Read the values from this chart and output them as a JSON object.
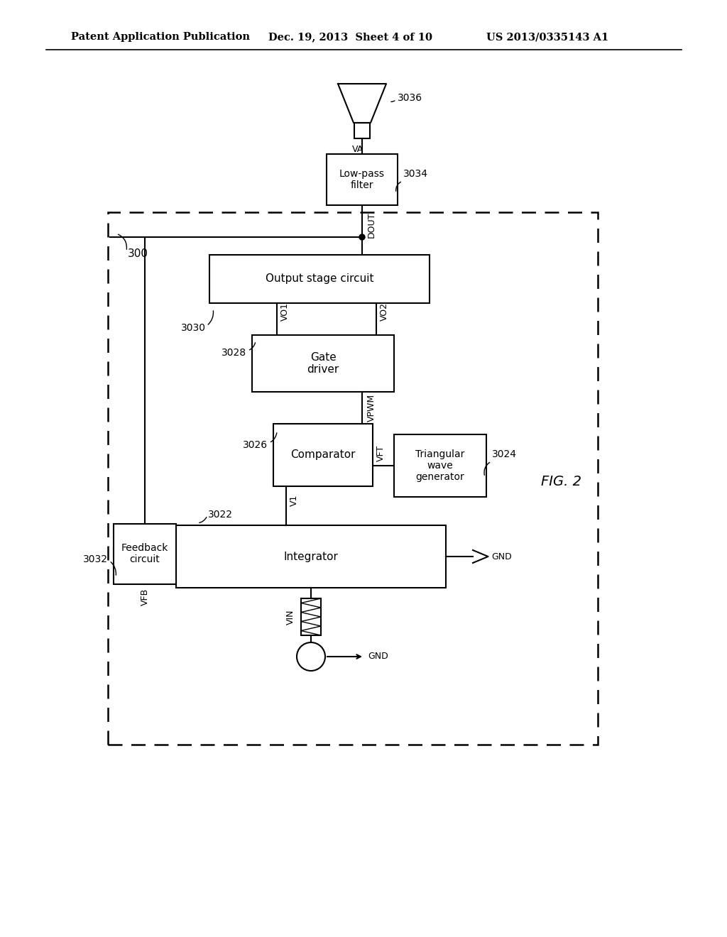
{
  "header_left": "Patent Application Publication",
  "header_mid": "Dec. 19, 2013  Sheet 4 of 10",
  "header_right": "US 2013/0335143 A1",
  "fig_label": "FIG. 2",
  "background": "#ffffff"
}
